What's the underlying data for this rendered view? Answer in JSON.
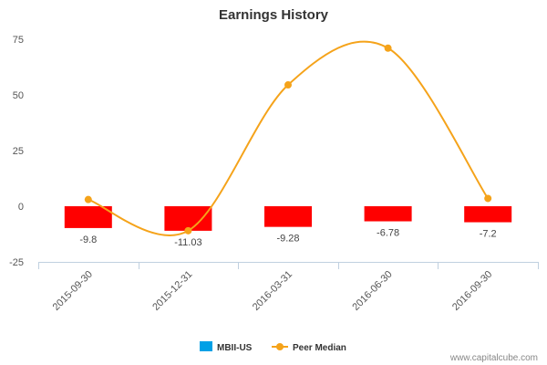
{
  "chart_data": {
    "type": "bar",
    "title": "Earnings History",
    "categories": [
      "2015-09-30",
      "2015-12-31",
      "2016-03-31",
      "2016-06-30",
      "2016-09-30"
    ],
    "ylim": [
      -25,
      75
    ],
    "yticks": [
      -25,
      0,
      25,
      50,
      75
    ],
    "grid": false,
    "legend": "bottom-center",
    "series": [
      {
        "name": "MBII-US",
        "type": "bar",
        "color": "#ff0000",
        "legend_color": "#00a0e6",
        "values": [
          -9.8,
          -11.03,
          -9.28,
          -6.78,
          -7.2
        ],
        "labels": [
          "-9.8",
          "-11.03",
          "-9.28",
          "-6.78",
          "-7.2"
        ]
      },
      {
        "name": "Peer Median",
        "type": "line",
        "color": "#f5a31a",
        "values": [
          3,
          -11,
          54.5,
          71,
          3.5
        ]
      }
    ]
  },
  "credit": "www.capitalcube.com"
}
